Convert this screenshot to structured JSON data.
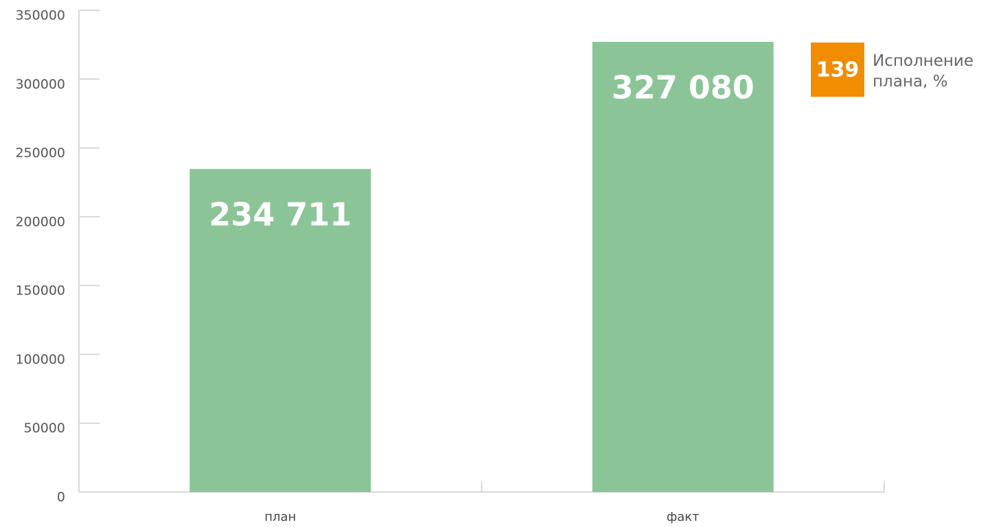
{
  "chart_data": {
    "type": "bar",
    "categories": [
      "план",
      "факт"
    ],
    "values": [
      234711,
      327080
    ],
    "value_labels": [
      "234 711",
      "327 080"
    ],
    "color": "#8bc597",
    "ylim": [
      0,
      350000
    ],
    "yticks": [
      0,
      50000,
      100000,
      150000,
      200000,
      250000,
      300000,
      350000
    ],
    "annotation": {
      "value": 139,
      "label": "Исполнение плана, %",
      "color": "#f28c00"
    }
  }
}
